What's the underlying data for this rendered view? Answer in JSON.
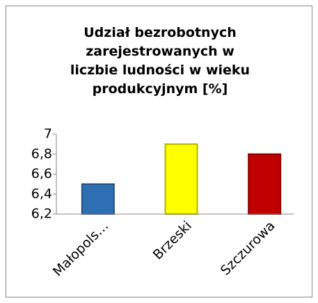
{
  "chart_data": {
    "type": "bar",
    "title": "Udział bezrobotnych zarejestrowanych w liczbie ludności w wieku produkcyjnym [%]",
    "categories": [
      "Małopols…",
      "Brzeski",
      "Szczurowa"
    ],
    "values": [
      6.5,
      6.9,
      6.8
    ],
    "colors": [
      "#2e6fb4",
      "#ffff00",
      "#c00000"
    ],
    "ylim": [
      6.2,
      7
    ],
    "yticks": [
      {
        "value": 6.2,
        "label": "6,2"
      },
      {
        "value": 6.4,
        "label": "6,4"
      },
      {
        "value": 6.6,
        "label": "6,6"
      },
      {
        "value": 6.8,
        "label": "6,8"
      },
      7
    ],
    "grid": false
  }
}
